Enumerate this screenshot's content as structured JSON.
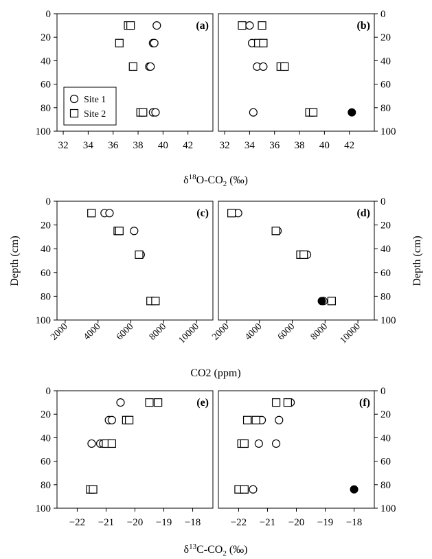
{
  "figure": {
    "shared_ylabel": "Depth (cm)",
    "row_xlabels": [
      "δ18O-CO2 (‰)",
      "CO2 (ppm)",
      "δ13C-CO2 (‰)"
    ],
    "legend": {
      "panel": "a",
      "site1": "Site 1",
      "site2": "Site 2"
    }
  },
  "chart_data": [
    {
      "panel_label": "(a)",
      "type": "scatter",
      "xlim": [
        31.5,
        44
      ],
      "ylim": [
        100,
        0
      ],
      "xticks": [
        32,
        34,
        36,
        38,
        40,
        42
      ],
      "yticks": [
        0,
        20,
        40,
        60,
        80,
        100
      ],
      "series": [
        {
          "name": "Site 1",
          "marker": "circle",
          "points": [
            [
              39.5,
              10
            ],
            [
              39.2,
              25
            ],
            [
              39.3,
              25
            ],
            [
              38.9,
              45
            ],
            [
              39.0,
              45
            ],
            [
              39.2,
              84
            ],
            [
              39.4,
              84
            ]
          ]
        },
        {
          "name": "Site 2",
          "marker": "square",
          "points": [
            [
              37.2,
              10
            ],
            [
              37.4,
              10
            ],
            [
              36.5,
              25
            ],
            [
              37.6,
              45
            ],
            [
              38.2,
              84
            ],
            [
              38.4,
              84
            ]
          ]
        }
      ]
    },
    {
      "panel_label": "(b)",
      "type": "scatter",
      "xlim": [
        31.5,
        44
      ],
      "ylim": [
        100,
        0
      ],
      "xticks": [
        32,
        34,
        36,
        38,
        40,
        42
      ],
      "yticks": [
        0,
        20,
        40,
        60,
        80,
        100
      ],
      "series": [
        {
          "name": "Site 1",
          "marker": "circle",
          "points": [
            [
              34.0,
              10
            ],
            [
              34.2,
              25
            ],
            [
              35.0,
              25
            ],
            [
              34.6,
              45
            ],
            [
              35.1,
              45
            ],
            [
              34.3,
              84
            ]
          ]
        },
        {
          "name": "Site 2",
          "marker": "square",
          "points": [
            [
              33.4,
              10
            ],
            [
              35.0,
              10
            ],
            [
              34.7,
              25
            ],
            [
              35.1,
              25
            ],
            [
              36.5,
              45
            ],
            [
              36.8,
              45
            ],
            [
              38.8,
              84
            ],
            [
              39.1,
              84
            ]
          ]
        },
        {
          "name": "",
          "marker": "filled-circle",
          "points": [
            [
              42.2,
              84
            ]
          ]
        }
      ]
    },
    {
      "panel_label": "(c)",
      "type": "scatter",
      "xlim": [
        1500,
        11000
      ],
      "ylim": [
        100,
        0
      ],
      "xticks": [
        2000,
        4000,
        6000,
        8000,
        10000
      ],
      "yticks": [
        0,
        20,
        40,
        60,
        80,
        100
      ],
      "series": [
        {
          "name": "Site 1",
          "marker": "circle",
          "points": [
            [
              4400,
              10
            ],
            [
              4700,
              10
            ],
            [
              6200,
              25
            ],
            [
              6600,
              45
            ],
            [
              7300,
              84
            ]
          ]
        },
        {
          "name": "Site 2",
          "marker": "square",
          "points": [
            [
              3600,
              10
            ],
            [
              5200,
              25
            ],
            [
              5300,
              25
            ],
            [
              6500,
              45
            ],
            [
              7200,
              84
            ],
            [
              7500,
              84
            ]
          ]
        }
      ]
    },
    {
      "panel_label": "(d)",
      "type": "scatter",
      "xlim": [
        1500,
        11000
      ],
      "ylim": [
        100,
        0
      ],
      "xticks": [
        2000,
        4000,
        6000,
        8000,
        10000
      ],
      "yticks": [
        0,
        20,
        40,
        60,
        80,
        100
      ],
      "series": [
        {
          "name": "Site 1",
          "marker": "circle",
          "points": [
            [
              2700,
              10
            ],
            [
              5100,
              25
            ],
            [
              6900,
              45
            ],
            [
              7900,
              84
            ]
          ]
        },
        {
          "name": "Site 2",
          "marker": "square",
          "points": [
            [
              2300,
              10
            ],
            [
              5000,
              25
            ],
            [
              6500,
              45
            ],
            [
              6700,
              45
            ],
            [
              8400,
              84
            ]
          ]
        },
        {
          "name": "",
          "marker": "filled-circle",
          "points": [
            [
              7800,
              84
            ]
          ]
        }
      ]
    },
    {
      "panel_label": "(e)",
      "type": "scatter",
      "xlim": [
        -22.7,
        -17.3
      ],
      "ylim": [
        100,
        0
      ],
      "xticks": [
        -22,
        -21,
        -20,
        -19,
        -18
      ],
      "yticks": [
        0,
        20,
        40,
        60,
        80,
        100
      ],
      "series": [
        {
          "name": "Site 1",
          "marker": "circle",
          "points": [
            [
              -20.5,
              10
            ],
            [
              -20.9,
              25
            ],
            [
              -20.8,
              25
            ],
            [
              -21.5,
              45
            ],
            [
              -21.2,
              45
            ],
            [
              -21.1,
              45
            ]
          ]
        },
        {
          "name": "Site 2",
          "marker": "square",
          "points": [
            [
              -19.5,
              10
            ],
            [
              -19.2,
              10
            ],
            [
              -20.3,
              25
            ],
            [
              -20.2,
              25
            ],
            [
              -21.0,
              45
            ],
            [
              -20.8,
              45
            ],
            [
              -21.55,
              84
            ],
            [
              -21.45,
              84
            ]
          ]
        }
      ]
    },
    {
      "panel_label": "(f)",
      "type": "scatter",
      "xlim": [
        -22.7,
        -17.3
      ],
      "ylim": [
        100,
        0
      ],
      "xticks": [
        -22,
        -21,
        -20,
        -19,
        -18
      ],
      "yticks": [
        0,
        20,
        40,
        60,
        80,
        100
      ],
      "series": [
        {
          "name": "Site 1",
          "marker": "circle",
          "points": [
            [
              -20.2,
              10
            ],
            [
              -21.2,
              25
            ],
            [
              -20.6,
              25
            ],
            [
              -21.3,
              45
            ],
            [
              -20.7,
              45
            ],
            [
              -21.5,
              84
            ]
          ]
        },
        {
          "name": "Site 2",
          "marker": "square",
          "points": [
            [
              -20.7,
              10
            ],
            [
              -20.3,
              10
            ],
            [
              -21.7,
              25
            ],
            [
              -21.4,
              25
            ],
            [
              -21.9,
              45
            ],
            [
              -21.8,
              45
            ],
            [
              -22.0,
              84
            ],
            [
              -21.8,
              84
            ]
          ]
        },
        {
          "name": "",
          "marker": "filled-circle",
          "points": [
            [
              -18.0,
              84
            ]
          ]
        }
      ]
    }
  ]
}
